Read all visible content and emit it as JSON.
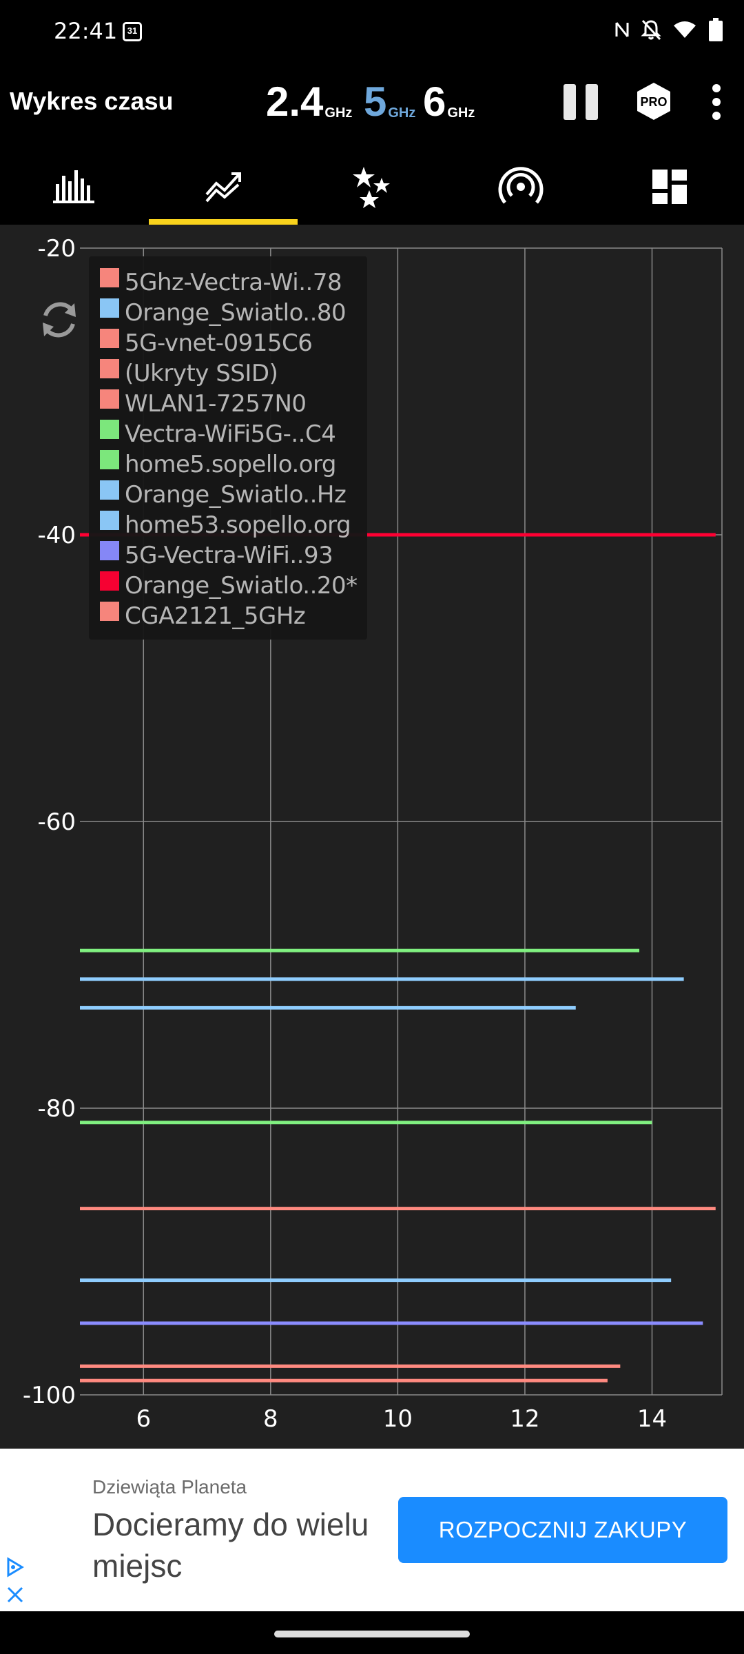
{
  "status_bar": {
    "time": "22:41",
    "calendar_day": "31",
    "icons": [
      "nfc-icon",
      "notifications-off-icon",
      "wifi-icon",
      "battery-icon"
    ]
  },
  "header": {
    "title": "Wykres czasu",
    "bands": [
      {
        "value": "2.4",
        "unit": "GHz",
        "color": "#ffffff"
      },
      {
        "value": "5",
        "unit": "GHz",
        "color": "#6fa8dc"
      },
      {
        "value": "6",
        "unit": "GHz",
        "color": "#ffffff"
      }
    ],
    "pro_label": "PRO"
  },
  "tabs": [
    {
      "name": "tab-channel-graph",
      "icon": "bar-chart-icon",
      "active": false
    },
    {
      "name": "tab-time-graph",
      "icon": "trend-chart-icon",
      "active": true
    },
    {
      "name": "tab-channel-rating",
      "icon": "stars-icon",
      "active": false
    },
    {
      "name": "tab-access-points",
      "icon": "signal-icon",
      "active": false
    },
    {
      "name": "tab-dashboard",
      "icon": "dashboard-icon",
      "active": false
    }
  ],
  "chart_data": {
    "type": "line",
    "x_ticks": [
      6,
      8,
      10,
      12,
      14
    ],
    "xlim": [
      5,
      15.1
    ],
    "y_ticks": [
      -20,
      -40,
      -60,
      -80,
      -100
    ],
    "ylim": [
      -100,
      -20
    ],
    "grid": true,
    "series": [
      {
        "name": "5Ghz-Vectra-Wi..78",
        "color": "#ff8a80",
        "x": [
          5,
          15.0
        ],
        "y": [
          -87.0,
          -87.0
        ]
      },
      {
        "name": "Orange_Swiatlo..80",
        "color": "#8fcdfe",
        "x": [
          5,
          14.5
        ],
        "y": [
          -71.0,
          -71.0
        ]
      },
      {
        "name": "5G-vnet-0915C6",
        "color": "#ff8a80",
        "x": [
          5,
          13.5
        ],
        "y": [
          -98.0,
          -98.0
        ]
      },
      {
        "name": "(Ukryty SSID)",
        "color": "#ff8a80",
        "x": [
          5,
          13.3
        ],
        "y": [
          -99.0,
          -99.0
        ]
      },
      {
        "name": "WLAN1-7257N0",
        "color": "#ff8a80"
      },
      {
        "name": "Vectra-WiFi5G-..C4",
        "color": "#80f080",
        "x": [
          5,
          14.0
        ],
        "y": [
          -81.0,
          -81.0
        ]
      },
      {
        "name": "home5.sopello.org",
        "color": "#80f080",
        "x": [
          5,
          13.8
        ],
        "y": [
          -69.0,
          -69.0
        ]
      },
      {
        "name": "Orange_Swiatlo..Hz",
        "color": "#8fcdfe",
        "x": [
          5,
          12.8
        ],
        "y": [
          -73.0,
          -73.0
        ]
      },
      {
        "name": "home53.sopello.org",
        "color": "#8fcdfe",
        "x": [
          5,
          14.3
        ],
        "y": [
          -92.0,
          -92.0
        ]
      },
      {
        "name": "5G-Vectra-WiFi..93",
        "color": "#8a8cff",
        "x": [
          5,
          14.8
        ],
        "y": [
          -95.0,
          -95.0
        ]
      },
      {
        "name": "Orange_Swiatlo..20*",
        "color": "#ff0033",
        "x": [
          5,
          15.0
        ],
        "y": [
          -40.0,
          -40.0
        ]
      },
      {
        "name": "CGA2121_5GHz",
        "color": "#ff8a80"
      }
    ]
  },
  "ad": {
    "advertiser": "Dziewiąta Planeta",
    "headline_line1": "Docieramy do wielu",
    "headline_line2": "miejsc",
    "cta": "ROZPOCZNIJ ZAKUPY"
  }
}
